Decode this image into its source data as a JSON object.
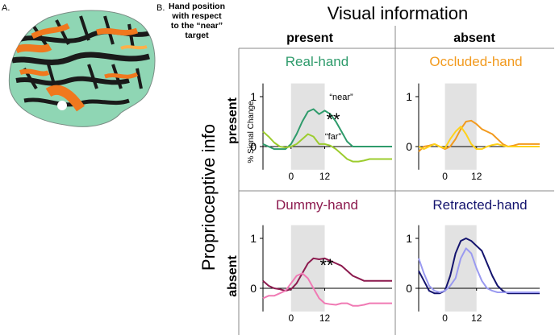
{
  "panel_a_label": "A.",
  "panel_b_label": "B.",
  "hand_position_caption": [
    "Hand position",
    "with respect",
    "to the “near”",
    "target"
  ],
  "visual_info_title": "Visual information",
  "proprioceptive_info_title": "Proprioceptive info",
  "col_headers": [
    "present",
    "absent"
  ],
  "row_headers": [
    "present",
    "absent"
  ],
  "colors": {
    "real_near": "#2e9b6b",
    "real_far": "#9ccc2e",
    "occluded_near": "#f29a1e",
    "occluded_far": "#ffd21a",
    "dummy_near": "#8c1a4e",
    "dummy_far": "#f07ab4",
    "retracted_near": "#14146e",
    "retracted_far": "#9a9af0",
    "brain_base": "#8fd6b4",
    "brain_dark": "#1a1a1a",
    "brain_orange": "#f0781e",
    "stim_shade": "#e2e2e2"
  },
  "chart_data": [
    {
      "type": "line",
      "title": "Real-hand",
      "ylabel": "% Signal Change",
      "xlim": [
        -10,
        36
      ],
      "ylim": [
        -0.4,
        1.2
      ],
      "x_ticks": [
        "0",
        "12"
      ],
      "y_ticks": [
        "0",
        "1"
      ],
      "stimulus_window": [
        0,
        12
      ],
      "annotations": [
        "“near”",
        "“far”",
        "**"
      ],
      "series": [
        {
          "name": "“near”",
          "color_key": "real_near",
          "x": [
            -10,
            -8,
            -6,
            -4,
            -2,
            0,
            2,
            4,
            6,
            8,
            10,
            12,
            14,
            16,
            18,
            20,
            22,
            24,
            26,
            28,
            30,
            32,
            34,
            36
          ],
          "y": [
            0.05,
            0.0,
            -0.05,
            -0.05,
            -0.05,
            0.05,
            0.25,
            0.5,
            0.7,
            0.75,
            0.65,
            0.72,
            0.65,
            0.5,
            0.3,
            0.1,
            0.0,
            0.0,
            0.0,
            0.0,
            0.0,
            0.0,
            0.0,
            0.0
          ]
        },
        {
          "name": "“far”",
          "color_key": "real_far",
          "x": [
            -10,
            -8,
            -6,
            -4,
            -2,
            0,
            2,
            4,
            6,
            8,
            10,
            12,
            14,
            16,
            18,
            20,
            22,
            24,
            26,
            28,
            30,
            32,
            34,
            36
          ],
          "y": [
            0.3,
            0.2,
            0.08,
            0.0,
            -0.02,
            0.0,
            0.05,
            0.15,
            0.25,
            0.2,
            0.05,
            0.05,
            0.02,
            -0.05,
            -0.15,
            -0.25,
            -0.3,
            -0.3,
            -0.28,
            -0.25,
            -0.25,
            -0.25,
            -0.25,
            -0.25
          ]
        }
      ]
    },
    {
      "type": "line",
      "title": "Occluded-hand",
      "xlim": [
        -10,
        36
      ],
      "ylim": [
        -0.4,
        1.2
      ],
      "x_ticks": [
        "0",
        "12"
      ],
      "y_ticks": [
        "0",
        "1"
      ],
      "stimulus_window": [
        0,
        12
      ],
      "series": [
        {
          "name": "“near”",
          "color_key": "occluded_near",
          "x": [
            -10,
            -8,
            -6,
            -4,
            -2,
            0,
            2,
            4,
            6,
            8,
            10,
            12,
            14,
            16,
            18,
            20,
            22,
            24,
            26,
            28,
            30,
            32,
            34,
            36
          ],
          "y": [
            -0.1,
            0.0,
            0.02,
            0.05,
            0.0,
            -0.05,
            0.0,
            0.15,
            0.35,
            0.5,
            0.52,
            0.45,
            0.35,
            0.3,
            0.25,
            0.15,
            0.05,
            0.0,
            0.02,
            0.05,
            0.05,
            0.05,
            0.05,
            0.05
          ]
        },
        {
          "name": "“far”",
          "color_key": "occluded_far",
          "x": [
            -10,
            -8,
            -6,
            -4,
            -2,
            0,
            2,
            4,
            6,
            8,
            10,
            12,
            14,
            16,
            18,
            20,
            22,
            24,
            26,
            28,
            30,
            32,
            34,
            36
          ],
          "y": [
            0.0,
            -0.05,
            0.0,
            0.05,
            0.0,
            -0.03,
            0.15,
            0.3,
            0.4,
            0.25,
            0.05,
            -0.05,
            -0.05,
            0.0,
            0.03,
            0.05,
            0.02,
            0.0,
            0.0,
            0.0,
            0.0,
            0.0,
            0.0,
            0.0
          ]
        }
      ]
    },
    {
      "type": "line",
      "title": "Dummy-hand",
      "xlim": [
        -10,
        36
      ],
      "ylim": [
        -0.4,
        1.2
      ],
      "x_ticks": [
        "0",
        "12"
      ],
      "y_ticks": [
        "0",
        "1"
      ],
      "stimulus_window": [
        0,
        12
      ],
      "annotations": [
        "**"
      ],
      "series": [
        {
          "name": "“near”",
          "color_key": "dummy_near",
          "x": [
            -10,
            -8,
            -6,
            -4,
            -2,
            0,
            2,
            4,
            6,
            8,
            10,
            12,
            14,
            16,
            18,
            20,
            22,
            24,
            26,
            28,
            30,
            32,
            34,
            36
          ],
          "y": [
            0.15,
            0.05,
            0.0,
            -0.02,
            -0.05,
            -0.02,
            0.1,
            0.3,
            0.5,
            0.6,
            0.58,
            0.6,
            0.55,
            0.5,
            0.45,
            0.35,
            0.25,
            0.2,
            0.15,
            0.15,
            0.15,
            0.15,
            0.15,
            0.15
          ]
        },
        {
          "name": "“far”",
          "color_key": "dummy_far",
          "x": [
            -10,
            -8,
            -6,
            -4,
            -2,
            0,
            2,
            4,
            6,
            8,
            10,
            12,
            14,
            16,
            18,
            20,
            22,
            24,
            26,
            28,
            30,
            32,
            34,
            36
          ],
          "y": [
            -0.2,
            -0.15,
            -0.15,
            -0.1,
            -0.05,
            0.1,
            0.25,
            0.3,
            0.2,
            0.0,
            -0.2,
            -0.3,
            -0.32,
            -0.33,
            -0.3,
            -0.3,
            -0.35,
            -0.35,
            -0.33,
            -0.3,
            -0.3,
            -0.3,
            -0.3,
            -0.3
          ]
        }
      ]
    },
    {
      "type": "line",
      "title": "Retracted-hand",
      "xlim": [
        -10,
        36
      ],
      "ylim": [
        -0.4,
        1.2
      ],
      "x_ticks": [
        "0",
        "12"
      ],
      "y_ticks": [
        "0",
        "1"
      ],
      "stimulus_window": [
        0,
        12
      ],
      "series": [
        {
          "name": "“near”",
          "color_key": "retracted_near",
          "x": [
            -10,
            -8,
            -6,
            -4,
            -2,
            0,
            2,
            4,
            6,
            8,
            10,
            12,
            14,
            16,
            18,
            20,
            22,
            24,
            26,
            28,
            30,
            32,
            34,
            36
          ],
          "y": [
            0.35,
            0.15,
            -0.05,
            -0.1,
            -0.1,
            -0.05,
            0.25,
            0.7,
            0.95,
            1.0,
            0.95,
            0.85,
            0.75,
            0.5,
            0.25,
            0.05,
            -0.05,
            -0.1,
            -0.1,
            -0.1,
            -0.1,
            -0.1,
            -0.1,
            -0.1
          ]
        },
        {
          "name": "“far”",
          "color_key": "retracted_far",
          "x": [
            -10,
            -8,
            -6,
            -4,
            -2,
            0,
            2,
            4,
            6,
            8,
            10,
            12,
            14,
            16,
            18,
            20,
            22,
            24,
            26,
            28,
            30,
            32,
            34,
            36
          ],
          "y": [
            0.6,
            0.3,
            0.05,
            -0.05,
            -0.08,
            -0.05,
            0.05,
            0.2,
            0.6,
            0.8,
            0.7,
            0.4,
            0.15,
            0.0,
            -0.05,
            -0.08,
            -0.08,
            -0.08,
            -0.08,
            -0.08,
            -0.08,
            -0.08,
            -0.08,
            -0.08
          ]
        }
      ]
    }
  ]
}
